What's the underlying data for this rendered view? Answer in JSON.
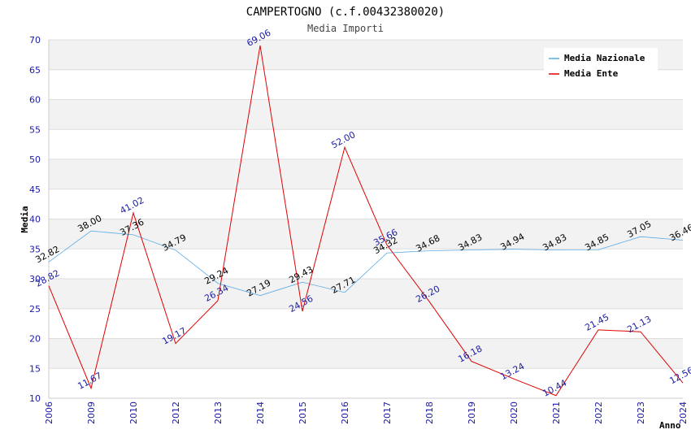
{
  "chart_data": {
    "type": "line",
    "title": "CAMPERTOGNO (c.f.00432380020)",
    "subtitle": "Media Importi",
    "xlabel": "Anno",
    "ylabel": "Media",
    "ylim": [
      10,
      70
    ],
    "yticks": [
      10,
      15,
      20,
      25,
      30,
      35,
      40,
      45,
      50,
      55,
      60,
      65,
      70
    ],
    "categories": [
      "2006",
      "2009",
      "2010",
      "2012",
      "2013",
      "2014",
      "2015",
      "2016",
      "2017",
      "2018",
      "2019",
      "2020",
      "2021",
      "2022",
      "2023",
      "2024"
    ],
    "series": [
      {
        "name": "Media Nazionale",
        "color": "#5aaae6",
        "values": [
          32.82,
          38.0,
          37.36,
          34.79,
          29.24,
          27.19,
          29.43,
          27.71,
          34.32,
          34.68,
          34.83,
          34.94,
          34.83,
          34.85,
          37.05,
          36.46
        ],
        "labels": [
          "32.82",
          "38.00",
          "37.36",
          "34.79",
          "29.24",
          "27.19",
          "29.43",
          "27.71",
          "34.32",
          "34.68",
          "34.83",
          "34.94",
          "34.83",
          "34.85",
          "37.05",
          "36.46"
        ]
      },
      {
        "name": "Media Ente",
        "color": "#e00000",
        "values": [
          28.82,
          11.67,
          41.02,
          19.17,
          26.34,
          69.06,
          24.56,
          52.0,
          35.66,
          26.2,
          16.18,
          13.24,
          10.44,
          21.45,
          21.13,
          12.56
        ],
        "labels": [
          "28.82",
          "11.67",
          "41.02",
          "19.17",
          "26.34",
          "69.06",
          "24.56",
          "52.00",
          "35.66",
          "26.20",
          "16.18",
          "13.24",
          "10.44",
          "21.45",
          "21.13",
          "12.56"
        ]
      }
    ],
    "legend_position": "top-right",
    "grid": true
  }
}
